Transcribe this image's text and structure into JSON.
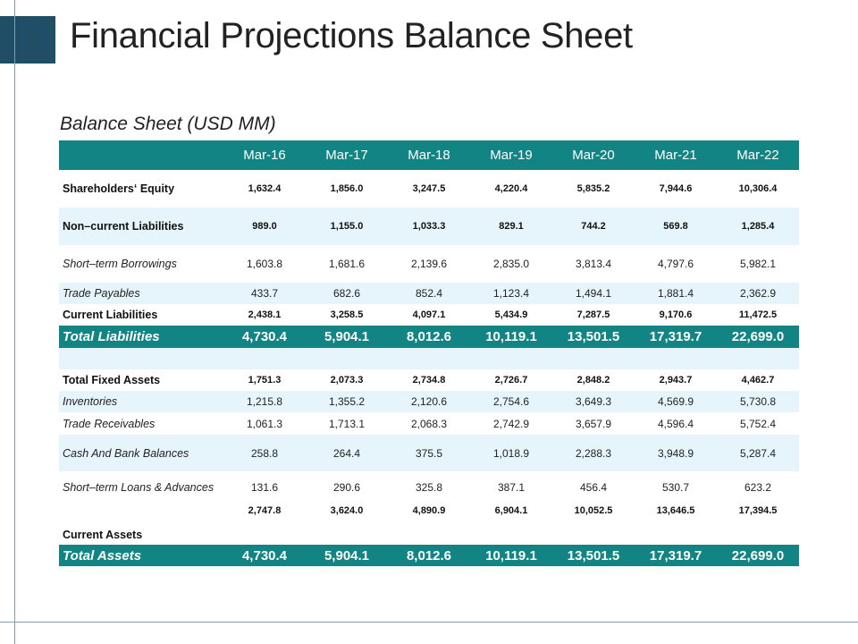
{
  "title": "Financial Projections Balance Sheet",
  "subtitle": "Balance Sheet (USD MM)",
  "columns": [
    "Mar-16",
    "Mar-17",
    "Mar-18",
    "Mar-19",
    "Mar-20",
    "Mar-21",
    "Mar-22"
  ],
  "rows": [
    {
      "label": "Shareholders‘ Equity",
      "values": [
        "1,632.4",
        "1,856.0",
        "3,247.5",
        "4,220.4",
        "5,835.2",
        "7,944.6",
        "10,306.4"
      ]
    },
    {
      "label": "Non–current Liabilities",
      "values": [
        "989.0",
        "1,155.0",
        "1,033.3",
        "829.1",
        "744.2",
        "569.8",
        "1,285.4"
      ]
    },
    {
      "label": "Short–term Borrowings",
      "values": [
        "1,603.8",
        "1,681.6",
        "2,139.6",
        "2,835.0",
        "3,813.4",
        "4,797.6",
        "5,982.1"
      ]
    },
    {
      "label": "Trade Payables",
      "values": [
        "433.7",
        "682.6",
        "852.4",
        "1,123.4",
        "1,494.1",
        "1,881.4",
        "2,362.9"
      ]
    },
    {
      "label": "Current Liabilities",
      "values": [
        "2,438.1",
        "3,258.5",
        "4,097.1",
        "5,434.9",
        "7,287.5",
        "9,170.6",
        "11,472.5"
      ]
    },
    {
      "label": "Total Liabilities",
      "values": [
        "4,730.4",
        "5,904.1",
        "8,012.6",
        "10,119.1",
        "13,501.5",
        "17,319.7",
        "22,699.0"
      ]
    },
    {
      "label": "Total Fixed Assets",
      "values": [
        "1,751.3",
        "2,073.3",
        "2,734.8",
        "2,726.7",
        "2,848.2",
        "2,943.7",
        "4,462.7"
      ]
    },
    {
      "label": "Inventories",
      "values": [
        "1,215.8",
        "1,355.2",
        "2,120.6",
        "2,754.6",
        "3,649.3",
        "4,569.9",
        "5,730.8"
      ]
    },
    {
      "label": "Trade Receivables",
      "values": [
        "1,061.3",
        "1,713.1",
        "2,068.3",
        "2,742.9",
        "3,657.9",
        "4,596.4",
        "5,752.4"
      ]
    },
    {
      "label": "Cash And Bank Balances",
      "values": [
        "258.8",
        "264.4",
        "375.5",
        "1,018.9",
        "2,288.3",
        "3,948.9",
        "5,287.4"
      ]
    },
    {
      "label": "Short–term Loans & Advances",
      "values": [
        "131.6",
        "290.6",
        "325.8",
        "387.1",
        "456.4",
        "530.7",
        "623.2"
      ]
    },
    {
      "label": "Current Assets",
      "values": [
        "2,747.8",
        "3,624.0",
        "4,890.9",
        "6,904.1",
        "10,052.5",
        "13,646.5",
        "17,394.5"
      ]
    },
    {
      "label": "Total Assets",
      "values": [
        "4,730.4",
        "5,904.1",
        "8,012.6",
        "10,119.1",
        "13,501.5",
        "17,319.7",
        "22,699.0"
      ]
    }
  ],
  "colors": {
    "accent_dark": "#1f4e66",
    "header_teal": "#138484",
    "row_tint": "#e5f5fb"
  }
}
